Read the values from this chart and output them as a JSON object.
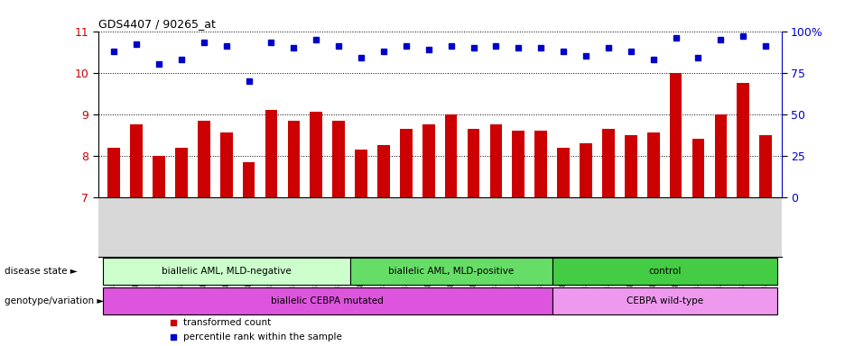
{
  "title": "GDS4407 / 90265_at",
  "samples": [
    "GSM822482",
    "GSM822483",
    "GSM822484",
    "GSM822485",
    "GSM822486",
    "GSM822487",
    "GSM822488",
    "GSM822489",
    "GSM822490",
    "GSM822491",
    "GSM822492",
    "GSM822473",
    "GSM822474",
    "GSM822475",
    "GSM822476",
    "GSM822477",
    "GSM822478",
    "GSM822479",
    "GSM822480",
    "GSM822481",
    "GSM822463",
    "GSM822464",
    "GSM822465",
    "GSM822466",
    "GSM822467",
    "GSM822468",
    "GSM822469",
    "GSM822470",
    "GSM822471",
    "GSM822472"
  ],
  "bar_values": [
    8.2,
    8.75,
    8.0,
    8.2,
    8.85,
    8.55,
    7.85,
    9.1,
    8.85,
    9.05,
    8.85,
    8.15,
    8.25,
    8.65,
    8.75,
    9.0,
    8.65,
    8.75,
    8.6,
    8.6,
    8.2,
    8.3,
    8.65,
    8.5,
    8.55,
    10.0,
    8.4,
    9.0,
    9.75,
    8.5
  ],
  "percentile_values": [
    88,
    92,
    80,
    83,
    93,
    91,
    70,
    93,
    90,
    95,
    91,
    84,
    88,
    91,
    89,
    91,
    90,
    91,
    90,
    90,
    88,
    85,
    90,
    88,
    83,
    96,
    84,
    95,
    97,
    91
  ],
  "ylim_left": [
    7,
    11
  ],
  "ylim_right": [
    0,
    100
  ],
  "yticks_left": [
    7,
    8,
    9,
    10,
    11
  ],
  "yticks_right": [
    0,
    25,
    50,
    75,
    100
  ],
  "bar_color": "#cc0000",
  "dot_color": "#0000cc",
  "disease_groups": [
    {
      "label": "biallelic AML, MLD-negative",
      "start": 0,
      "end": 11,
      "color": "#ccffcc"
    },
    {
      "label": "biallelic AML, MLD-positive",
      "start": 11,
      "end": 20,
      "color": "#66dd66"
    },
    {
      "label": "control",
      "start": 20,
      "end": 30,
      "color": "#44cc44"
    }
  ],
  "genotype_groups": [
    {
      "label": "biallelic CEBPA mutated",
      "start": 0,
      "end": 20,
      "color": "#dd55dd"
    },
    {
      "label": "CEBPA wild-type",
      "start": 20,
      "end": 30,
      "color": "#ee99ee"
    }
  ],
  "disease_label": "disease state",
  "genotype_label": "genotype/variation",
  "legend_items": [
    {
      "label": "transformed count",
      "color": "#cc0000"
    },
    {
      "label": "percentile rank within the sample",
      "color": "#0000cc"
    }
  ],
  "xtick_bg": "#d8d8d8",
  "plot_bg": "#ffffff"
}
